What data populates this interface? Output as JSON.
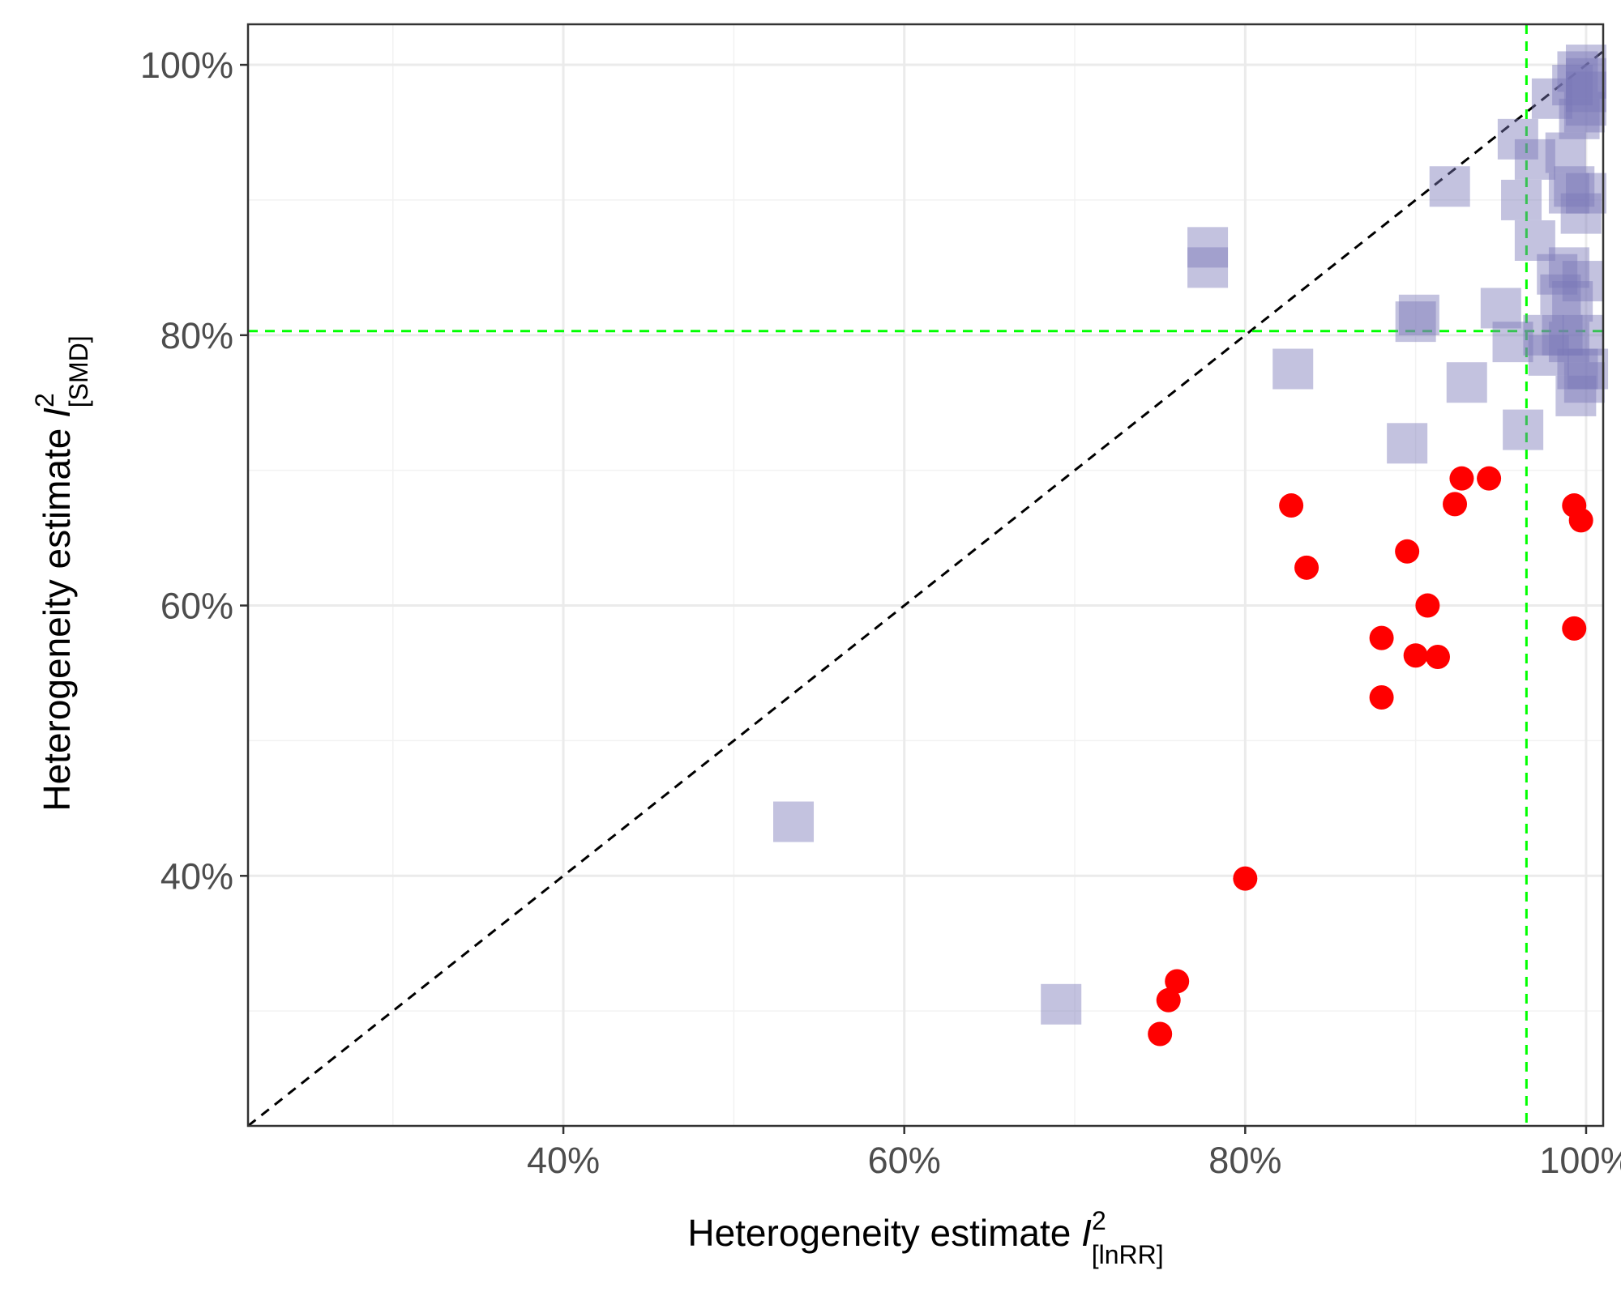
{
  "chart_data": {
    "type": "scatter",
    "xlabel": {
      "main": "Heterogeneity estimate ",
      "symbol": "I",
      "sup": "2",
      "sub": "[lnRR]"
    },
    "ylabel": {
      "main": "Heterogeneity estimate ",
      "symbol": "I",
      "sup": "2",
      "sub": "[SMD]"
    },
    "xlim": [
      0.215,
      1.01
    ],
    "ylim": [
      0.215,
      1.03
    ],
    "x_ticks": [
      {
        "value": 0.4,
        "label": "40%"
      },
      {
        "value": 0.6,
        "label": "60%"
      },
      {
        "value": 0.8,
        "label": "80%"
      },
      {
        "value": 1.0,
        "label": "100%"
      }
    ],
    "y_ticks": [
      {
        "value": 0.4,
        "label": "40%"
      },
      {
        "value": 0.6,
        "label": "60%"
      },
      {
        "value": 0.8,
        "label": "80%"
      },
      {
        "value": 1.0,
        "label": "100%"
      }
    ],
    "x_minor": [
      0.3,
      0.5,
      0.7,
      0.9
    ],
    "y_minor": [
      0.3,
      0.5,
      0.7,
      0.9
    ],
    "grid": true,
    "reference_lines": {
      "diagonal": {
        "color": "#000000",
        "dash": true
      },
      "vertical": {
        "value": 0.965,
        "color": "#00ff00",
        "dash": true
      },
      "horizontal": {
        "value": 0.803,
        "color": "#00ff00",
        "dash": true
      }
    },
    "series": [
      {
        "marker": "square",
        "color": "#7b78b8",
        "opacity": 0.45,
        "points": [
          [
            0.535,
            0.44
          ],
          [
            0.692,
            0.305
          ],
          [
            0.778,
            0.865
          ],
          [
            0.778,
            0.85
          ],
          [
            0.828,
            0.775
          ],
          [
            0.895,
            0.72
          ],
          [
            0.9,
            0.81
          ],
          [
            0.902,
            0.815
          ],
          [
            0.92,
            0.91
          ],
          [
            0.93,
            0.765
          ],
          [
            0.95,
            0.82
          ],
          [
            0.957,
            0.795
          ],
          [
            0.96,
            0.945
          ],
          [
            0.962,
            0.9
          ],
          [
            0.963,
            0.73
          ],
          [
            0.97,
            0.93
          ],
          [
            0.97,
            0.87
          ],
          [
            0.975,
            0.8
          ],
          [
            0.978,
            0.785
          ],
          [
            0.98,
            0.975
          ],
          [
            0.983,
            0.845
          ],
          [
            0.985,
            0.83
          ],
          [
            0.988,
            0.935
          ],
          [
            0.99,
            0.905
          ],
          [
            0.99,
            0.85
          ],
          [
            0.99,
            0.795
          ],
          [
            0.992,
            0.985
          ],
          [
            0.993,
            0.91
          ],
          [
            0.995,
            0.775
          ],
          [
            0.995,
            0.995
          ],
          [
            0.996,
            0.96
          ],
          [
            0.997,
            0.89
          ],
          [
            0.998,
            0.8
          ],
          [
            0.998,
            0.84
          ],
          [
            0.999,
            0.965
          ],
          [
            1.0,
            0.97
          ],
          [
            1.0,
            0.98
          ],
          [
            1.0,
            0.99
          ],
          [
            1.0,
            1.0
          ],
          [
            1.0,
            0.905
          ],
          [
            1.001,
            0.775
          ],
          [
            0.994,
            0.755
          ],
          [
            0.986,
            0.8
          ],
          [
            0.992,
            0.825
          ],
          [
            0.999,
            0.765
          ]
        ]
      },
      {
        "marker": "circle",
        "color": "#ff0000",
        "opacity": 1,
        "points": [
          [
            0.75,
            0.283
          ],
          [
            0.755,
            0.308
          ],
          [
            0.76,
            0.322
          ],
          [
            0.8,
            0.398
          ],
          [
            0.827,
            0.674
          ],
          [
            0.836,
            0.628
          ],
          [
            0.88,
            0.532
          ],
          [
            0.88,
            0.576
          ],
          [
            0.895,
            0.64
          ],
          [
            0.9,
            0.563
          ],
          [
            0.907,
            0.6
          ],
          [
            0.913,
            0.562
          ],
          [
            0.923,
            0.675
          ],
          [
            0.927,
            0.694
          ],
          [
            0.943,
            0.694
          ],
          [
            0.993,
            0.674
          ],
          [
            0.993,
            0.583
          ],
          [
            0.997,
            0.663
          ]
        ]
      }
    ]
  }
}
